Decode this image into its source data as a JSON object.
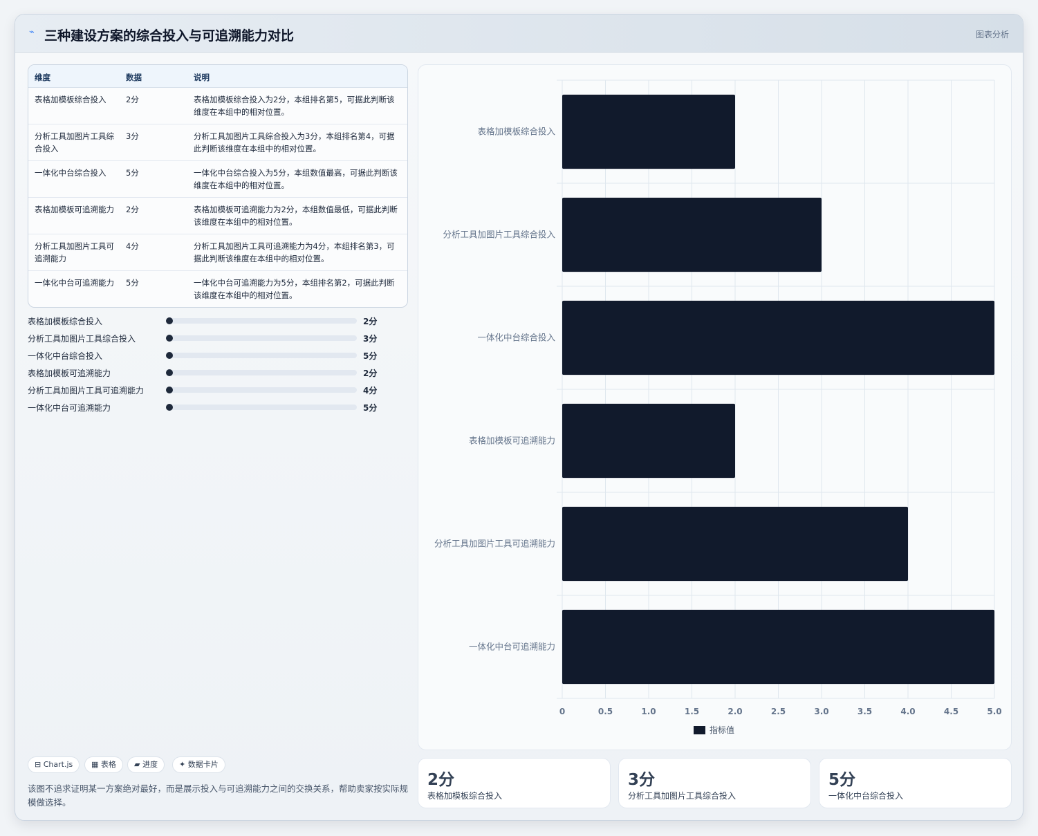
{
  "header": {
    "icon": "chart-line-icon",
    "title": "三种建设方案的综合投入与可追溯能力对比",
    "tag": "图表分析"
  },
  "table": {
    "headers": [
      "维度",
      "数据",
      "说明"
    ],
    "rows": [
      {
        "dim": "表格加模板综合投入",
        "value": "2分",
        "desc": "表格加模板综合投入为2分，本组排名第5，可据此判断该维度在本组中的相对位置。"
      },
      {
        "dim": "分析工具加图片工具综合投入",
        "value": "3分",
        "desc": "分析工具加图片工具综合投入为3分，本组排名第4，可据此判断该维度在本组中的相对位置。"
      },
      {
        "dim": "一体化中台综合投入",
        "value": "5分",
        "desc": "一体化中台综合投入为5分，本组数值最高，可据此判断该维度在本组中的相对位置。"
      },
      {
        "dim": "表格加模板可追溯能力",
        "value": "2分",
        "desc": "表格加模板可追溯能力为2分，本组数值最低，可据此判断该维度在本组中的相对位置。"
      },
      {
        "dim": "分析工具加图片工具可追溯能力",
        "value": "4分",
        "desc": "分析工具加图片工具可追溯能力为4分，本组排名第3，可据此判断该维度在本组中的相对位置。"
      },
      {
        "dim": "一体化中台可追溯能力",
        "value": "5分",
        "desc": "一体化中台可追溯能力为5分，本组排名第2，可据此判断该维度在本组中的相对位置。"
      }
    ]
  },
  "progress": [
    {
      "label": "表格加模板综合投入",
      "value": "2分",
      "fraction": 0
    },
    {
      "label": "分析工具加图片工具综合投入",
      "value": "3分",
      "fraction": 0
    },
    {
      "label": "一体化中台综合投入",
      "value": "5分",
      "fraction": 0
    },
    {
      "label": "表格加模板可追溯能力",
      "value": "2分",
      "fraction": 0
    },
    {
      "label": "分析工具加图片工具可追溯能力",
      "value": "4分",
      "fraction": 0
    },
    {
      "label": "一体化中台可追溯能力",
      "value": "5分",
      "fraction": 0
    }
  ],
  "pills": [
    "⊟ Chart.js",
    "▦ 表格",
    "▰ 进度",
    "✦ 数据卡片"
  ],
  "note": "该图不追求证明某一方案绝对最好，而是展示投入与可追溯能力之间的交换关系，帮助卖家按实际规模做选择。",
  "stats": [
    {
      "big": "2分",
      "sub": "表格加模板综合投入"
    },
    {
      "big": "3分",
      "sub": "分析工具加图片工具综合投入"
    },
    {
      "big": "5分",
      "sub": "一体化中台综合投入"
    }
  ],
  "chart_data": {
    "type": "bar",
    "orientation": "horizontal",
    "categories": [
      "表格加模板综合投入",
      "分析工具加图片工具综合投入",
      "一体化中台综合投入",
      "表格加模板可追溯能力",
      "分析工具加图片工具可追溯能力",
      "一体化中台可追溯能力"
    ],
    "series": [
      {
        "name": "指标值",
        "values": [
          2,
          3,
          5,
          2,
          4,
          5
        ],
        "color": "#111a2c"
      }
    ],
    "xlim": [
      0,
      5
    ],
    "xticks": [
      "0",
      "0.5",
      "1.0",
      "1.5",
      "2.0",
      "2.5",
      "3.0",
      "3.5",
      "4.0",
      "4.5",
      "5.0"
    ],
    "grid": true,
    "legend": "bottom"
  }
}
